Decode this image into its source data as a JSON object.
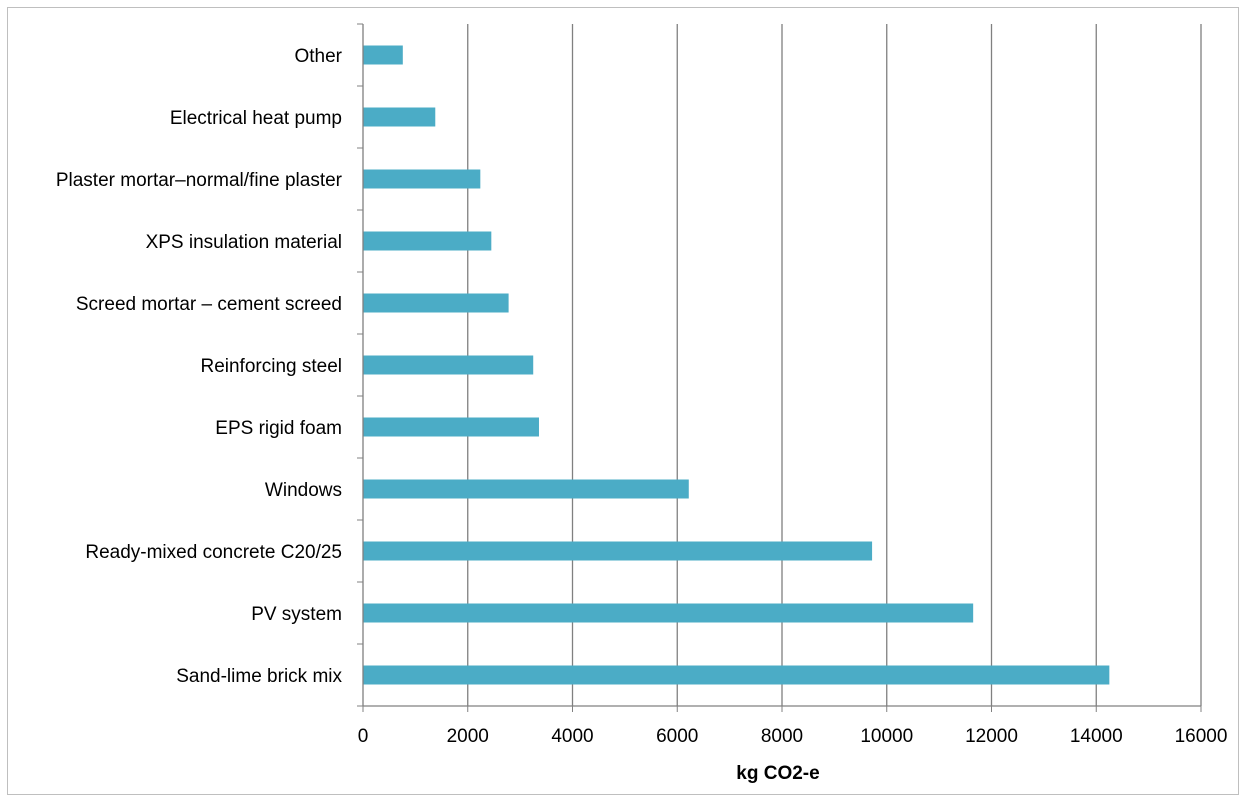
{
  "chart_data": {
    "type": "bar",
    "orientation": "horizontal",
    "categories": [
      "Sand-lime brick mix",
      "PV system",
      "Ready-mixed concrete C20/25",
      "Windows",
      "EPS rigid foam",
      "Reinforcing steel",
      "Screed mortar – cement screed",
      "XPS insulation material",
      "Plaster mortar–normal/fine plaster",
      "Electrical heat pump",
      "Other"
    ],
    "values": [
      14250,
      11650,
      9720,
      6220,
      3360,
      3250,
      2780,
      2450,
      2240,
      1380,
      760
    ],
    "xlabel": "kg CO2-e",
    "ylabel": "",
    "title": "",
    "xlim": [
      0,
      16000
    ],
    "xticks": [
      "0",
      "2000",
      "4000",
      "6000",
      "8000",
      "10000",
      "12000",
      "14000",
      "16000"
    ],
    "gridlines": "vertical",
    "bar_color": "#4bacc6",
    "grid_color": "#808080",
    "legend": "none"
  }
}
